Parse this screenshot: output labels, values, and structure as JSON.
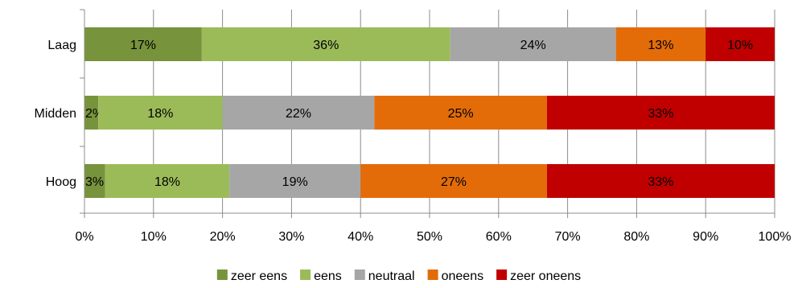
{
  "chart_data": {
    "type": "bar",
    "orientation": "horizontal",
    "stacked": true,
    "categories": [
      "Laag",
      "Midden",
      "Hoog"
    ],
    "series": [
      {
        "name": "zeer eens",
        "color": "#77933c",
        "values": [
          17,
          2,
          3
        ],
        "labels": [
          "17%",
          "2%",
          "3%"
        ]
      },
      {
        "name": "eens",
        "color": "#9bbb59",
        "values": [
          36,
          18,
          18
        ],
        "labels": [
          "36%",
          "18%",
          "18%"
        ]
      },
      {
        "name": "neutraal",
        "color": "#a6a6a6",
        "values": [
          24,
          22,
          19
        ],
        "labels": [
          "24%",
          "22%",
          "19%"
        ]
      },
      {
        "name": "oneens",
        "color": "#e36c09",
        "values": [
          13,
          25,
          27
        ],
        "labels": [
          "13%",
          "25%",
          "27%"
        ]
      },
      {
        "name": "zeer oneens",
        "color": "#c00000",
        "values": [
          10,
          33,
          33
        ],
        "labels": [
          "10%",
          "33%",
          "33%"
        ]
      }
    ],
    "xlim": [
      0,
      100
    ],
    "x_ticks": [
      "0%",
      "10%",
      "20%",
      "30%",
      "40%",
      "50%",
      "60%",
      "70%",
      "80%",
      "90%",
      "100%"
    ],
    "grid": true,
    "legend_position": "bottom"
  }
}
